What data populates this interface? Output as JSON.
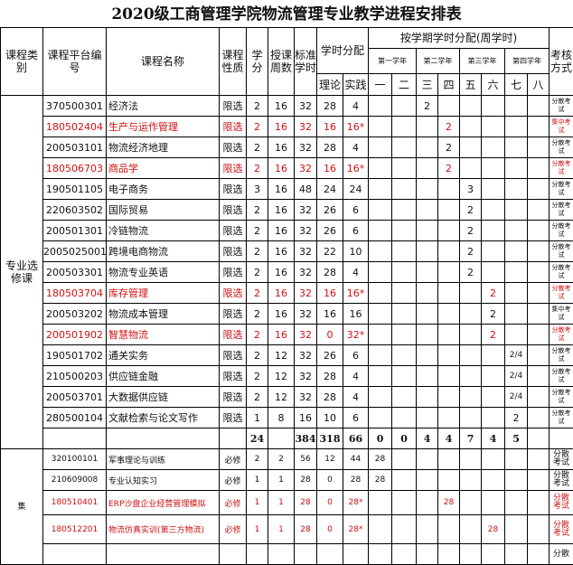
{
  "title": "2020级工商管理学院物流管理专业教学进程安排表",
  "header": {
    "category": "课程类别",
    "code": "课程平台编号",
    "name": "课程名称",
    "nature": "课程性质",
    "credit": "学分",
    "weeks": "授课周数",
    "hours": "标准学时",
    "hour_split": "学时分配",
    "theory": "理论",
    "practice": "实践",
    "semester_split": "按学期学时分配(周学时)",
    "years": [
      "第一学年",
      "第二学年",
      "第三学年",
      "第四学年"
    ],
    "semesters": [
      "一",
      "二",
      "三",
      "四",
      "五",
      "六",
      "七",
      "八"
    ],
    "exam": "考核方式"
  },
  "groups": [
    {
      "category": "专业选修课"
    },
    {
      "category": "集"
    }
  ],
  "rows": [
    {
      "code": "370500301",
      "name": "经济法",
      "nature": "限选",
      "credit": "2",
      "weeks": "16",
      "hours": "32",
      "theory": "28",
      "practice": "4",
      "sem": [
        "",
        "",
        "2",
        "",
        "",
        "",
        "",
        ""
      ],
      "exam": "分散考试",
      "red": false,
      "exam_red": false
    },
    {
      "code": "180502404",
      "name": "生产与运作管理",
      "nature": "限选",
      "credit": "2",
      "weeks": "16",
      "hours": "32",
      "theory": "16",
      "practice": "16*",
      "sem": [
        "",
        "",
        "",
        "2",
        "",
        "",
        "",
        ""
      ],
      "exam": "集中考试",
      "red": true,
      "exam_red": true
    },
    {
      "code": "200503101",
      "name": "物流经济地理",
      "nature": "限选",
      "credit": "2",
      "weeks": "16",
      "hours": "32",
      "theory": "28",
      "practice": "4",
      "sem": [
        "",
        "",
        "",
        "2",
        "",
        "",
        "",
        ""
      ],
      "exam": "分散考试",
      "red": false,
      "exam_red": false
    },
    {
      "code": "180506703",
      "name": "商品学",
      "nature": "限选",
      "credit": "2",
      "weeks": "16",
      "hours": "32",
      "theory": "16",
      "practice": "16*",
      "sem": [
        "",
        "",
        "",
        "2",
        "",
        "",
        "",
        ""
      ],
      "exam": "分散考试",
      "red": true,
      "exam_red": false
    },
    {
      "code": "190501105",
      "name": "电子商务",
      "nature": "限选",
      "credit": "3",
      "weeks": "16",
      "hours": "48",
      "theory": "24",
      "practice": "24",
      "sem": [
        "",
        "",
        "",
        "",
        "3",
        "",
        "",
        ""
      ],
      "exam": "分散考试",
      "red": false,
      "exam_red": false
    },
    {
      "code": "220603502",
      "name": "国际贸易",
      "nature": "限选",
      "credit": "2",
      "weeks": "16",
      "hours": "32",
      "theory": "26",
      "practice": "6",
      "sem": [
        "",
        "",
        "",
        "",
        "2",
        "",
        "",
        ""
      ],
      "exam": "分散考试",
      "red": false,
      "exam_red": false
    },
    {
      "code": "200501301",
      "name": "冷链物流",
      "nature": "限选",
      "credit": "2",
      "weeks": "16",
      "hours": "32",
      "theory": "26",
      "practice": "6",
      "sem": [
        "",
        "",
        "",
        "",
        "2",
        "",
        "",
        ""
      ],
      "exam": "分散考试",
      "red": false,
      "exam_red": false
    },
    {
      "code": "2005025001",
      "name": "跨境电商物流",
      "nature": "限选",
      "credit": "2",
      "weeks": "16",
      "hours": "32",
      "theory": "22",
      "practice": "10",
      "sem": [
        "",
        "",
        "",
        "",
        "2",
        "",
        "",
        ""
      ],
      "exam": "分散考试",
      "red": false,
      "exam_red": false
    },
    {
      "code": "200503301",
      "name": "物流专业英语",
      "nature": "限选",
      "credit": "2",
      "weeks": "16",
      "hours": "32",
      "theory": "28",
      "practice": "4",
      "sem": [
        "",
        "",
        "",
        "",
        "2",
        "",
        "",
        ""
      ],
      "exam": "分散考试",
      "red": false,
      "exam_red": false
    },
    {
      "code": "180503704",
      "name": "库存管理",
      "nature": "限选",
      "credit": "2",
      "weeks": "16",
      "hours": "32",
      "theory": "16",
      "practice": "16*",
      "sem": [
        "",
        "",
        "",
        "",
        "",
        "2",
        "",
        ""
      ],
      "exam": "分散考试",
      "red": true,
      "exam_red": true
    },
    {
      "code": "200503202",
      "name": "物流成本管理",
      "nature": "限选",
      "credit": "2",
      "weeks": "16",
      "hours": "32",
      "theory": "16",
      "practice": "16",
      "sem": [
        "",
        "",
        "",
        "",
        "",
        "2",
        "",
        ""
      ],
      "exam": "集中考试",
      "red": false,
      "exam_red": false
    },
    {
      "code": "200501902",
      "name": "智慧物流",
      "nature": "限选",
      "credit": "2",
      "weeks": "16",
      "hours": "32",
      "theory": "0",
      "practice": "32*",
      "sem": [
        "",
        "",
        "",
        "",
        "",
        "2",
        "",
        ""
      ],
      "exam": "分散考试",
      "red": true,
      "exam_red": true
    },
    {
      "code": "190501702",
      "name": "通关实务",
      "nature": "限选",
      "credit": "2",
      "weeks": "12",
      "hours": "32",
      "theory": "26",
      "practice": "6",
      "sem": [
        "",
        "",
        "",
        "",
        "",
        "",
        "2/4",
        ""
      ],
      "exam": "分散考试",
      "red": false,
      "exam_red": false
    },
    {
      "code": "210500203",
      "name": "供应链金融",
      "nature": "限选",
      "credit": "2",
      "weeks": "12",
      "hours": "32",
      "theory": "28",
      "practice": "4",
      "sem": [
        "",
        "",
        "",
        "",
        "",
        "",
        "2/4",
        ""
      ],
      "exam": "分散考试",
      "red": false,
      "exam_red": false
    },
    {
      "code": "200503701",
      "name": "大数据供应链",
      "nature": "限选",
      "credit": "2",
      "weeks": "12",
      "hours": "32",
      "theory": "28",
      "practice": "4",
      "sem": [
        "",
        "",
        "",
        "",
        "",
        "",
        "2/4",
        ""
      ],
      "exam": "分散考试",
      "red": false,
      "exam_red": false
    },
    {
      "code": "280500104",
      "name": "文献检索与论文写作",
      "nature": "限选",
      "credit": "1",
      "weeks": "8",
      "hours": "16",
      "theory": "10",
      "practice": "6",
      "sem": [
        "",
        "",
        "",
        "",
        "",
        "",
        "2",
        ""
      ],
      "exam": "分散考试",
      "red": false,
      "exam_red": false
    }
  ],
  "totals": {
    "credit": "24",
    "hours": "384",
    "theory": "318",
    "practice": "66",
    "sem": [
      "0",
      "0",
      "4",
      "4",
      "7",
      "4",
      "5",
      ""
    ]
  },
  "rows2": [
    {
      "code": "320100101",
      "name": "军事理论与训练",
      "nature": "必修",
      "credit": "2",
      "weeks": "2",
      "hours": "56",
      "theory": "12",
      "practice": "44",
      "sem": [
        "28",
        "",
        "",
        "",
        "",
        "",
        "",
        ""
      ],
      "exam": "分散考试",
      "red": false
    },
    {
      "code": "210609008",
      "name": "专业认知实习",
      "nature": "必修",
      "credit": "1",
      "weeks": "1",
      "hours": "28",
      "theory": "0",
      "practice": "28",
      "sem": [
        "28",
        "",
        "",
        "",
        "",
        "",
        "",
        ""
      ],
      "exam": "分散考试",
      "red": false
    },
    {
      "code": "180510401",
      "name": "ERP沙盘企业经营管理模拟",
      "nature": "必修",
      "credit": "1",
      "weeks": "1",
      "hours": "28",
      "theory": "0",
      "practice": "28*",
      "sem": [
        "",
        "",
        "",
        "28",
        "",
        "",
        "",
        ""
      ],
      "exam": "分散考试",
      "red": true
    },
    {
      "code": "180512201",
      "name": "物流仿真实训(第三方物流)",
      "nature": "必修",
      "credit": "1",
      "weeks": "1",
      "hours": "28",
      "theory": "0",
      "practice": "28*",
      "sem": [
        "",
        "",
        "",
        "",
        "",
        "28",
        "",
        ""
      ],
      "exam": "分散考试",
      "red": true
    },
    {
      "code": "",
      "name": "",
      "nature": "",
      "credit": "",
      "weeks": "",
      "hours": "",
      "theory": "",
      "practice": "",
      "sem": [
        "",
        "",
        "",
        "",
        "",
        "",
        "",
        ""
      ],
      "exam": "分散",
      "red": false
    }
  ]
}
